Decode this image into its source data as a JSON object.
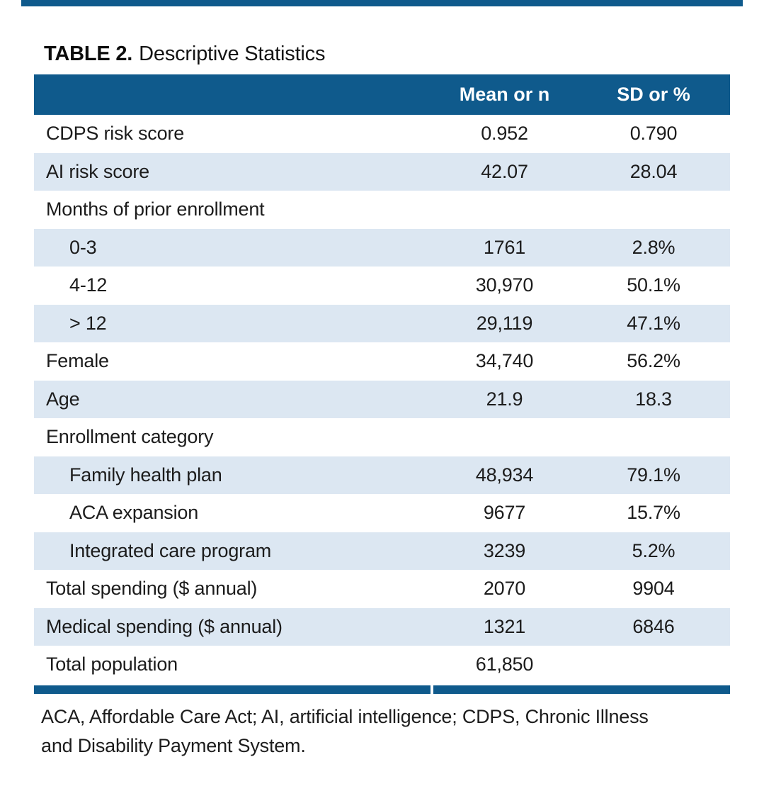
{
  "title": {
    "label": "TABLE 2.",
    "text": "Descriptive Statistics"
  },
  "table": {
    "columns": [
      "",
      "Mean or n",
      "SD or %"
    ],
    "rows": [
      {
        "label": "CDPS risk score",
        "mean": "0.952",
        "sd": "0.790",
        "indent": false
      },
      {
        "label": "AI risk score",
        "mean": "42.07",
        "sd": "28.04",
        "indent": false
      },
      {
        "label": "Months of prior enrollment",
        "mean": "",
        "sd": "",
        "indent": false
      },
      {
        "label": "0-3",
        "mean": "1761",
        "sd": "2.8%",
        "indent": true
      },
      {
        "label": "4-12",
        "mean": "30,970",
        "sd": "50.1%",
        "indent": true
      },
      {
        "label": "> 12",
        "mean": "29,119",
        "sd": "47.1%",
        "indent": true
      },
      {
        "label": "Female",
        "mean": "34,740",
        "sd": "56.2%",
        "indent": false
      },
      {
        "label": "Age",
        "mean": "21.9",
        "sd": "18.3",
        "indent": false
      },
      {
        "label": "Enrollment category",
        "mean": "",
        "sd": "",
        "indent": false
      },
      {
        "label": "Family health plan",
        "mean": "48,934",
        "sd": "79.1%",
        "indent": true
      },
      {
        "label": "ACA expansion",
        "mean": "9677",
        "sd": "15.7%",
        "indent": true
      },
      {
        "label": "Integrated care program",
        "mean": "3239",
        "sd": "5.2%",
        "indent": true
      },
      {
        "label": "Total spending ($ annual)",
        "mean": "2070",
        "sd": "9904",
        "indent": false
      },
      {
        "label": "Medical spending ($ annual)",
        "mean": "1321",
        "sd": "6846",
        "indent": false
      },
      {
        "label": "Total population",
        "mean": "61,850",
        "sd": "",
        "indent": false
      }
    ]
  },
  "footnote": {
    "line1": "ACA, Affordable Care Act; AI, artificial intelligence; CDPS, Chronic Illness",
    "line2": "and Disability Payment System."
  },
  "colors": {
    "navy": "#0F5A8C",
    "light_blue": "#DCE7F2",
    "text": "#1C1C1C"
  }
}
